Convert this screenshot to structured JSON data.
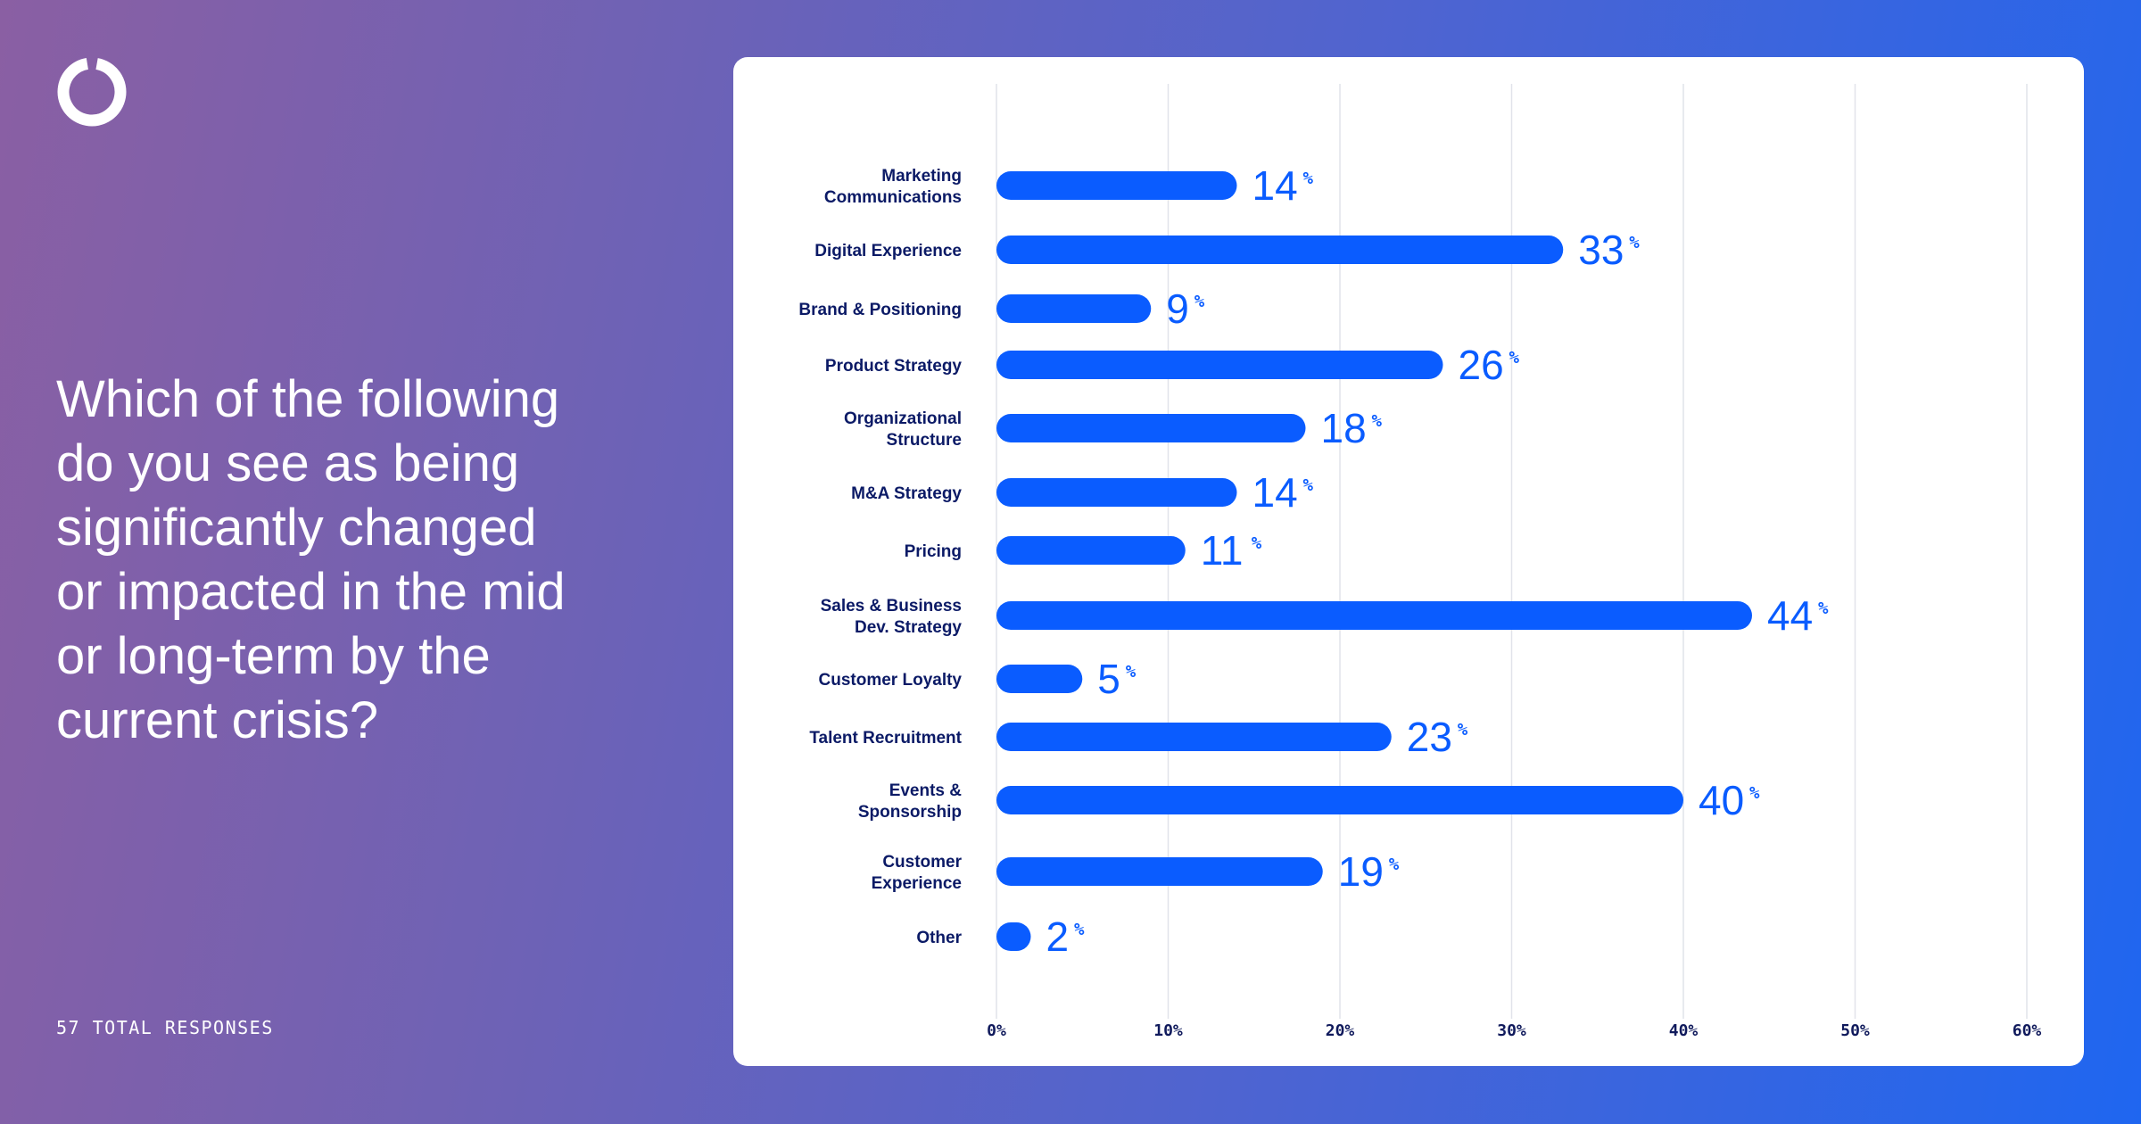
{
  "question": "Which of the following\ndo you see as being\nsignificantly changed\nor impacted in the mid\nor long-term by the\ncurrent crisis?",
  "responses_label": "57 TOTAL RESPONSES",
  "icons": {
    "logo": "ring-logo-icon"
  },
  "colors": {
    "bar": "#0a5cff",
    "label": "#0b1a66",
    "axis": "#101a5c",
    "grid": "#e1e3ea"
  },
  "chart_data": {
    "type": "bar",
    "orientation": "horizontal",
    "categories": [
      "Marketing\nCommunications",
      "Digital Experience",
      "Brand & Positioning",
      "Product Strategy",
      "Organizational\nStructure",
      "M&A Strategy",
      "Pricing",
      "Sales & Business\nDev. Strategy",
      "Customer Loyalty",
      "Talent Recruitment",
      "Events &\nSponsorship",
      "Customer\nExperience",
      "Other"
    ],
    "values": [
      14,
      33,
      9,
      26,
      18,
      14,
      11,
      44,
      5,
      23,
      40,
      19,
      2
    ],
    "value_suffix": "%",
    "xlim": [
      0,
      60
    ],
    "xticks": [
      "0%",
      "10%",
      "20%",
      "30%",
      "40%",
      "50%",
      "60%"
    ],
    "grid": true
  }
}
